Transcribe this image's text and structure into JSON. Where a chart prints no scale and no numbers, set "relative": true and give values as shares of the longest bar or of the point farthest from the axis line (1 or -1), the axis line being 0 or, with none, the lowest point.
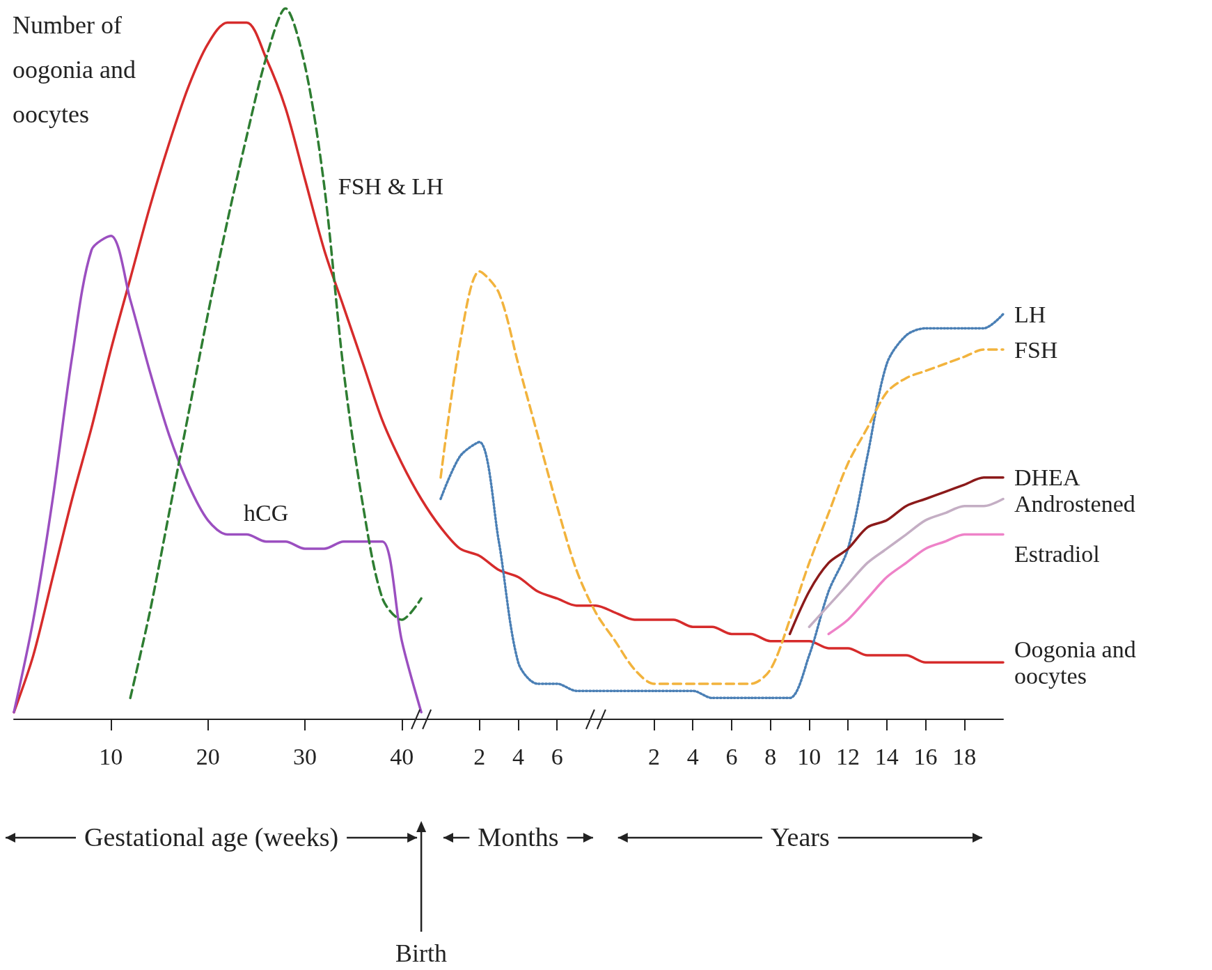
{
  "chart_data": {
    "type": "line",
    "relative": true,
    "legend": false,
    "grid": false,
    "marker": "none",
    "categories": [
      null,
      null,
      null,
      null,
      null,
      "10",
      null,
      null,
      null,
      null,
      "20",
      null,
      null,
      null,
      null,
      "30",
      null,
      null,
      null,
      null,
      "40",
      null,
      null,
      null,
      "2",
      null,
      "4",
      null,
      "6",
      null,
      null,
      null,
      null,
      "2",
      null,
      "4",
      null,
      "6",
      null,
      "8",
      null,
      "10",
      null,
      "12",
      null,
      "14",
      null,
      "16",
      null,
      "18",
      null,
      null
    ],
    "series": [
      {
        "name": "Oogonia and oocytes",
        "color": "#d62b2b",
        "line_style": "solid",
        "values": [
          0.01,
          0.09,
          0.2,
          0.31,
          0.41,
          0.52,
          0.62,
          0.72,
          0.81,
          0.89,
          0.95,
          0.98,
          0.98,
          0.93,
          0.86,
          0.76,
          0.66,
          0.58,
          0.5,
          0.42,
          0.36,
          0.31,
          0.27,
          0.24,
          0.23,
          0.21,
          0.2,
          0.18,
          0.17,
          0.16,
          0.16,
          0.15,
          0.14,
          0.14,
          0.14,
          0.13,
          0.13,
          0.12,
          0.12,
          0.11,
          0.11,
          0.11,
          0.1,
          0.1,
          0.09,
          0.09,
          0.09,
          0.08,
          0.08,
          0.08,
          0.08,
          0.08
        ]
      },
      {
        "name": "hCG",
        "color": "#9b4fc0",
        "line_style": "solid",
        "values": [
          0.01,
          0.14,
          0.31,
          0.51,
          0.66,
          0.68,
          0.59,
          0.49,
          0.4,
          0.33,
          0.28,
          0.26,
          0.26,
          0.25,
          0.25,
          0.24,
          0.24,
          0.25,
          0.25,
          0.25,
          0.11,
          0.01,
          null,
          null,
          null,
          null,
          null,
          null,
          null,
          null,
          null,
          null,
          null,
          null,
          null,
          null,
          null,
          null,
          null,
          null,
          null,
          null,
          null,
          null,
          null,
          null,
          null,
          null,
          null,
          null,
          null,
          null
        ]
      },
      {
        "name": "FSH & LH",
        "color": "#2e7d32",
        "line_style": "dashed",
        "values": [
          null,
          null,
          null,
          null,
          null,
          null,
          0.03,
          0.15,
          0.29,
          0.43,
          0.57,
          0.7,
          0.82,
          0.93,
          1.0,
          0.92,
          0.75,
          0.49,
          0.3,
          0.17,
          0.14,
          0.17,
          null,
          null,
          null,
          null,
          null,
          null,
          null,
          null,
          null,
          null,
          null,
          null,
          null,
          null,
          null,
          null,
          null,
          null,
          null,
          null,
          null,
          null,
          null,
          null,
          null,
          null,
          null,
          null,
          null,
          null
        ]
      },
      {
        "name": "LH",
        "color": "#4a7fb5",
        "line_style": "dotted",
        "values": [
          null,
          null,
          null,
          null,
          null,
          null,
          null,
          null,
          null,
          null,
          null,
          null,
          null,
          null,
          null,
          null,
          null,
          null,
          null,
          null,
          null,
          null,
          0.31,
          0.37,
          0.39,
          0.25,
          0.08,
          0.05,
          0.05,
          0.04,
          0.04,
          0.04,
          0.04,
          0.04,
          0.04,
          0.04,
          0.03,
          0.03,
          0.03,
          0.03,
          0.03,
          0.09,
          0.18,
          0.24,
          0.37,
          0.5,
          0.54,
          0.55,
          0.55,
          0.55,
          0.55,
          0.57
        ]
      },
      {
        "name": "FSH",
        "color": "#f2b33d",
        "line_style": "dashed",
        "values": [
          null,
          null,
          null,
          null,
          null,
          null,
          null,
          null,
          null,
          null,
          null,
          null,
          null,
          null,
          null,
          null,
          null,
          null,
          null,
          null,
          null,
          null,
          0.34,
          0.53,
          0.63,
          0.6,
          0.5,
          0.4,
          0.3,
          0.21,
          0.15,
          0.11,
          0.07,
          0.05,
          0.05,
          0.05,
          0.05,
          0.05,
          0.05,
          0.07,
          0.14,
          0.22,
          0.29,
          0.36,
          0.41,
          0.46,
          0.48,
          0.49,
          0.5,
          0.51,
          0.52,
          0.52
        ]
      },
      {
        "name": "DHEA",
        "color": "#8b1a1a",
        "line_style": "solid",
        "values": [
          null,
          null,
          null,
          null,
          null,
          null,
          null,
          null,
          null,
          null,
          null,
          null,
          null,
          null,
          null,
          null,
          null,
          null,
          null,
          null,
          null,
          null,
          null,
          null,
          null,
          null,
          null,
          null,
          null,
          null,
          null,
          null,
          null,
          null,
          null,
          null,
          null,
          null,
          null,
          null,
          0.12,
          0.18,
          0.22,
          0.24,
          0.27,
          0.28,
          0.3,
          0.31,
          0.32,
          0.33,
          0.34,
          0.34
        ]
      },
      {
        "name": "Androstened",
        "color": "#c4aec4",
        "line_style": "solid",
        "values": [
          null,
          null,
          null,
          null,
          null,
          null,
          null,
          null,
          null,
          null,
          null,
          null,
          null,
          null,
          null,
          null,
          null,
          null,
          null,
          null,
          null,
          null,
          null,
          null,
          null,
          null,
          null,
          null,
          null,
          null,
          null,
          null,
          null,
          null,
          null,
          null,
          null,
          null,
          null,
          null,
          null,
          0.13,
          0.16,
          0.19,
          0.22,
          0.24,
          0.26,
          0.28,
          0.29,
          0.3,
          0.3,
          0.31
        ]
      },
      {
        "name": "Estradiol",
        "color": "#ee82c8",
        "line_style": "solid",
        "values": [
          null,
          null,
          null,
          null,
          null,
          null,
          null,
          null,
          null,
          null,
          null,
          null,
          null,
          null,
          null,
          null,
          null,
          null,
          null,
          null,
          null,
          null,
          null,
          null,
          null,
          null,
          null,
          null,
          null,
          null,
          null,
          null,
          null,
          null,
          null,
          null,
          null,
          null,
          null,
          null,
          null,
          null,
          0.12,
          0.14,
          0.17,
          0.2,
          0.22,
          0.24,
          0.25,
          0.26,
          0.26,
          0.26
        ]
      }
    ],
    "annotations": [
      "Number of oogonia and oocytes",
      "Gestational age (weeks)",
      "Birth",
      "Months",
      "Years"
    ]
  }
}
